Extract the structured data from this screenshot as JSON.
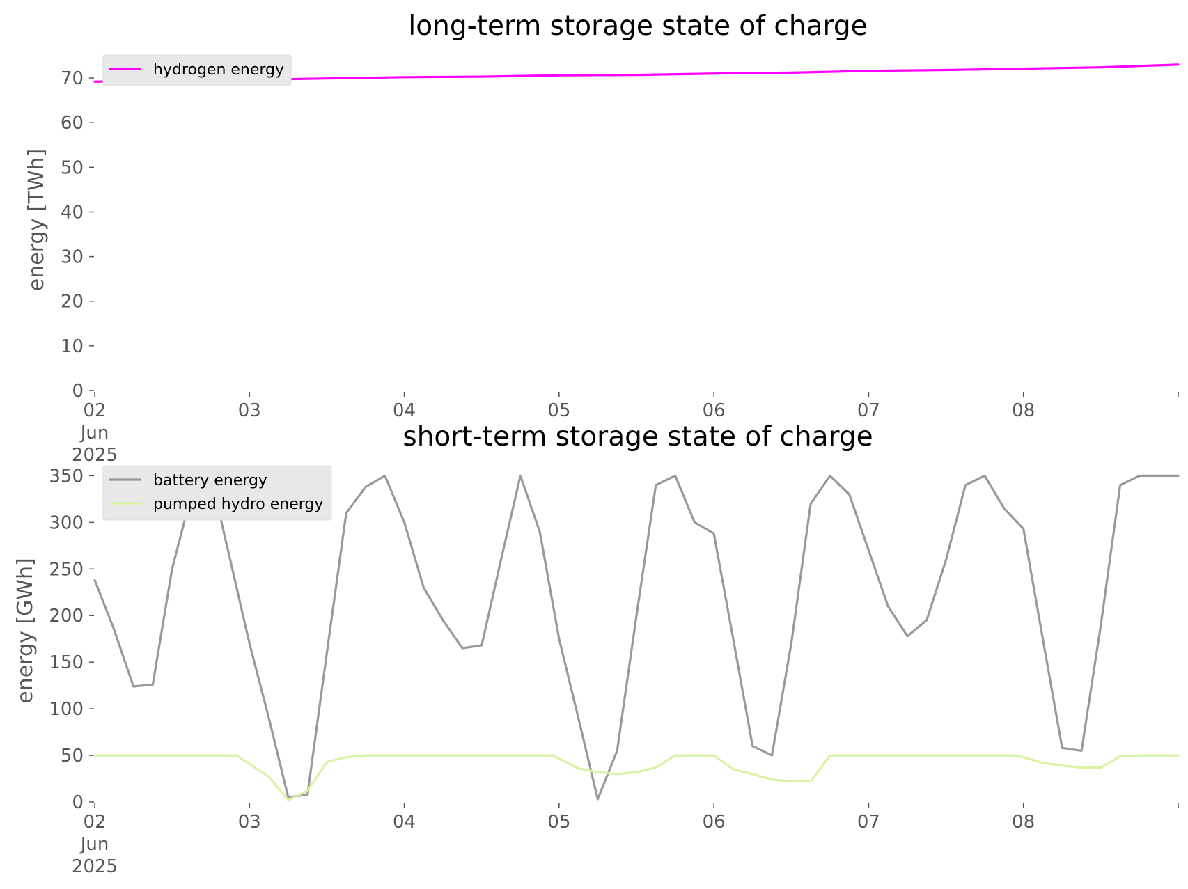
{
  "chart_data": [
    {
      "type": "line",
      "title": "long-term storage state of charge",
      "ylabel": "energy [TWh]",
      "xlabel": "",
      "ylim": [
        0,
        75
      ],
      "yticks": [
        0,
        10,
        20,
        30,
        40,
        50,
        60,
        70
      ],
      "xlim": [
        "2025-06-02",
        "2025-06-09"
      ],
      "xticks": [
        {
          "date": "2025-06-02",
          "lines": [
            "02",
            "Jun",
            "2025"
          ]
        },
        {
          "date": "2025-06-03",
          "lines": [
            "03"
          ]
        },
        {
          "date": "2025-06-04",
          "lines": [
            "04"
          ]
        },
        {
          "date": "2025-06-05",
          "lines": [
            "05"
          ]
        },
        {
          "date": "2025-06-06",
          "lines": [
            "06"
          ]
        },
        {
          "date": "2025-06-07",
          "lines": [
            "07"
          ]
        },
        {
          "date": "2025-06-08",
          "lines": [
            "08"
          ]
        }
      ],
      "grid": false,
      "legend_position": "top-left",
      "series": [
        {
          "name": "hydrogen energy",
          "color": "#ff00ff",
          "x": [
            "2025-06-02 00:00",
            "2025-06-02 12:00",
            "2025-06-03 00:00",
            "2025-06-03 12:00",
            "2025-06-04 00:00",
            "2025-06-04 12:00",
            "2025-06-05 00:00",
            "2025-06-05 12:00",
            "2025-06-06 00:00",
            "2025-06-06 12:00",
            "2025-06-07 00:00",
            "2025-06-07 12:00",
            "2025-06-08 00:00",
            "2025-06-08 12:00",
            "2025-06-09 00:00"
          ],
          "y": [
            69.2,
            69.3,
            69.6,
            69.9,
            70.2,
            70.3,
            70.6,
            70.7,
            71.0,
            71.2,
            71.6,
            71.8,
            72.1,
            72.4,
            73.0
          ]
        }
      ]
    },
    {
      "type": "line",
      "title": "short-term storage state of charge",
      "ylabel": "energy [GWh]",
      "xlabel": "",
      "ylim": [
        0,
        360
      ],
      "yticks": [
        0,
        50,
        100,
        150,
        200,
        250,
        300,
        350
      ],
      "xlim": [
        "2025-06-02",
        "2025-06-09"
      ],
      "xticks": [
        {
          "date": "2025-06-02",
          "lines": [
            "02",
            "Jun",
            "2025"
          ]
        },
        {
          "date": "2025-06-03",
          "lines": [
            "03"
          ]
        },
        {
          "date": "2025-06-04",
          "lines": [
            "04"
          ]
        },
        {
          "date": "2025-06-05",
          "lines": [
            "05"
          ]
        },
        {
          "date": "2025-06-06",
          "lines": [
            "06"
          ]
        },
        {
          "date": "2025-06-07",
          "lines": [
            "07"
          ]
        },
        {
          "date": "2025-06-08",
          "lines": [
            "08"
          ]
        }
      ],
      "grid": false,
      "legend_position": "top-left",
      "series": [
        {
          "name": "battery energy",
          "color": "#999999",
          "x": [
            "2025-06-02 00:00",
            "2025-06-02 03:00",
            "2025-06-02 06:00",
            "2025-06-02 09:00",
            "2025-06-02 12:00",
            "2025-06-02 15:00",
            "2025-06-02 18:00",
            "2025-06-02 21:00",
            "2025-06-03 00:00",
            "2025-06-03 03:00",
            "2025-06-03 06:00",
            "2025-06-03 09:00",
            "2025-06-03 12:00",
            "2025-06-03 15:00",
            "2025-06-03 18:00",
            "2025-06-03 21:00",
            "2025-06-04 00:00",
            "2025-06-04 03:00",
            "2025-06-04 06:00",
            "2025-06-04 09:00",
            "2025-06-04 12:00",
            "2025-06-04 15:00",
            "2025-06-04 18:00",
            "2025-06-04 21:00",
            "2025-06-05 00:00",
            "2025-06-05 03:00",
            "2025-06-05 06:00",
            "2025-06-05 09:00",
            "2025-06-05 12:00",
            "2025-06-05 15:00",
            "2025-06-05 18:00",
            "2025-06-05 21:00",
            "2025-06-06 00:00",
            "2025-06-06 03:00",
            "2025-06-06 06:00",
            "2025-06-06 09:00",
            "2025-06-06 12:00",
            "2025-06-06 15:00",
            "2025-06-06 18:00",
            "2025-06-06 21:00",
            "2025-06-07 00:00",
            "2025-06-07 03:00",
            "2025-06-07 06:00",
            "2025-06-07 09:00",
            "2025-06-07 12:00",
            "2025-06-07 15:00",
            "2025-06-07 18:00",
            "2025-06-07 21:00",
            "2025-06-08 00:00",
            "2025-06-08 03:00",
            "2025-06-08 06:00",
            "2025-06-08 09:00",
            "2025-06-08 12:00",
            "2025-06-08 15:00",
            "2025-06-08 18:00",
            "2025-06-08 21:00",
            "2025-06-09 00:00"
          ],
          "y": [
            238,
            185,
            124,
            126,
            250,
            330,
            350,
            260,
            170,
            90,
            5,
            8,
            160,
            310,
            338,
            350,
            300,
            230,
            195,
            165,
            168,
            260,
            350,
            290,
            175,
            90,
            3,
            55,
            200,
            340,
            350,
            300,
            288,
            175,
            60,
            50,
            170,
            320,
            350,
            330,
            270,
            210,
            178,
            195,
            260,
            340,
            350,
            315,
            293,
            175,
            58,
            55,
            190,
            340,
            350,
            350,
            350
          ]
        },
        {
          "name": "pumped hydro energy",
          "color": "#d9f2a3",
          "x": [
            "2025-06-02 00:00",
            "2025-06-02 22:00",
            "2025-06-03 03:00",
            "2025-06-03 06:00",
            "2025-06-03 09:00",
            "2025-06-03 12:00",
            "2025-06-03 15:00",
            "2025-06-03 18:00",
            "2025-06-04 12:00",
            "2025-06-04 23:00",
            "2025-06-05 03:00",
            "2025-06-05 06:00",
            "2025-06-05 09:00",
            "2025-06-05 12:00",
            "2025-06-05 15:00",
            "2025-06-05 18:00",
            "2025-06-06 00:00",
            "2025-06-06 03:00",
            "2025-06-06 06:00",
            "2025-06-06 09:00",
            "2025-06-06 12:00",
            "2025-06-06 15:00",
            "2025-06-06 18:00",
            "2025-06-07 12:00",
            "2025-06-07 23:00",
            "2025-06-08 03:00",
            "2025-06-08 06:00",
            "2025-06-08 09:00",
            "2025-06-08 12:00",
            "2025-06-08 15:00",
            "2025-06-08 18:00",
            "2025-06-09 00:00"
          ],
          "y": [
            50,
            50,
            27,
            2,
            12,
            43,
            48,
            50,
            50,
            50,
            36,
            32,
            30,
            32,
            37,
            50,
            50,
            35,
            30,
            24,
            22,
            22,
            50,
            50,
            50,
            42,
            39,
            37,
            37,
            49,
            50,
            50
          ]
        }
      ]
    }
  ]
}
